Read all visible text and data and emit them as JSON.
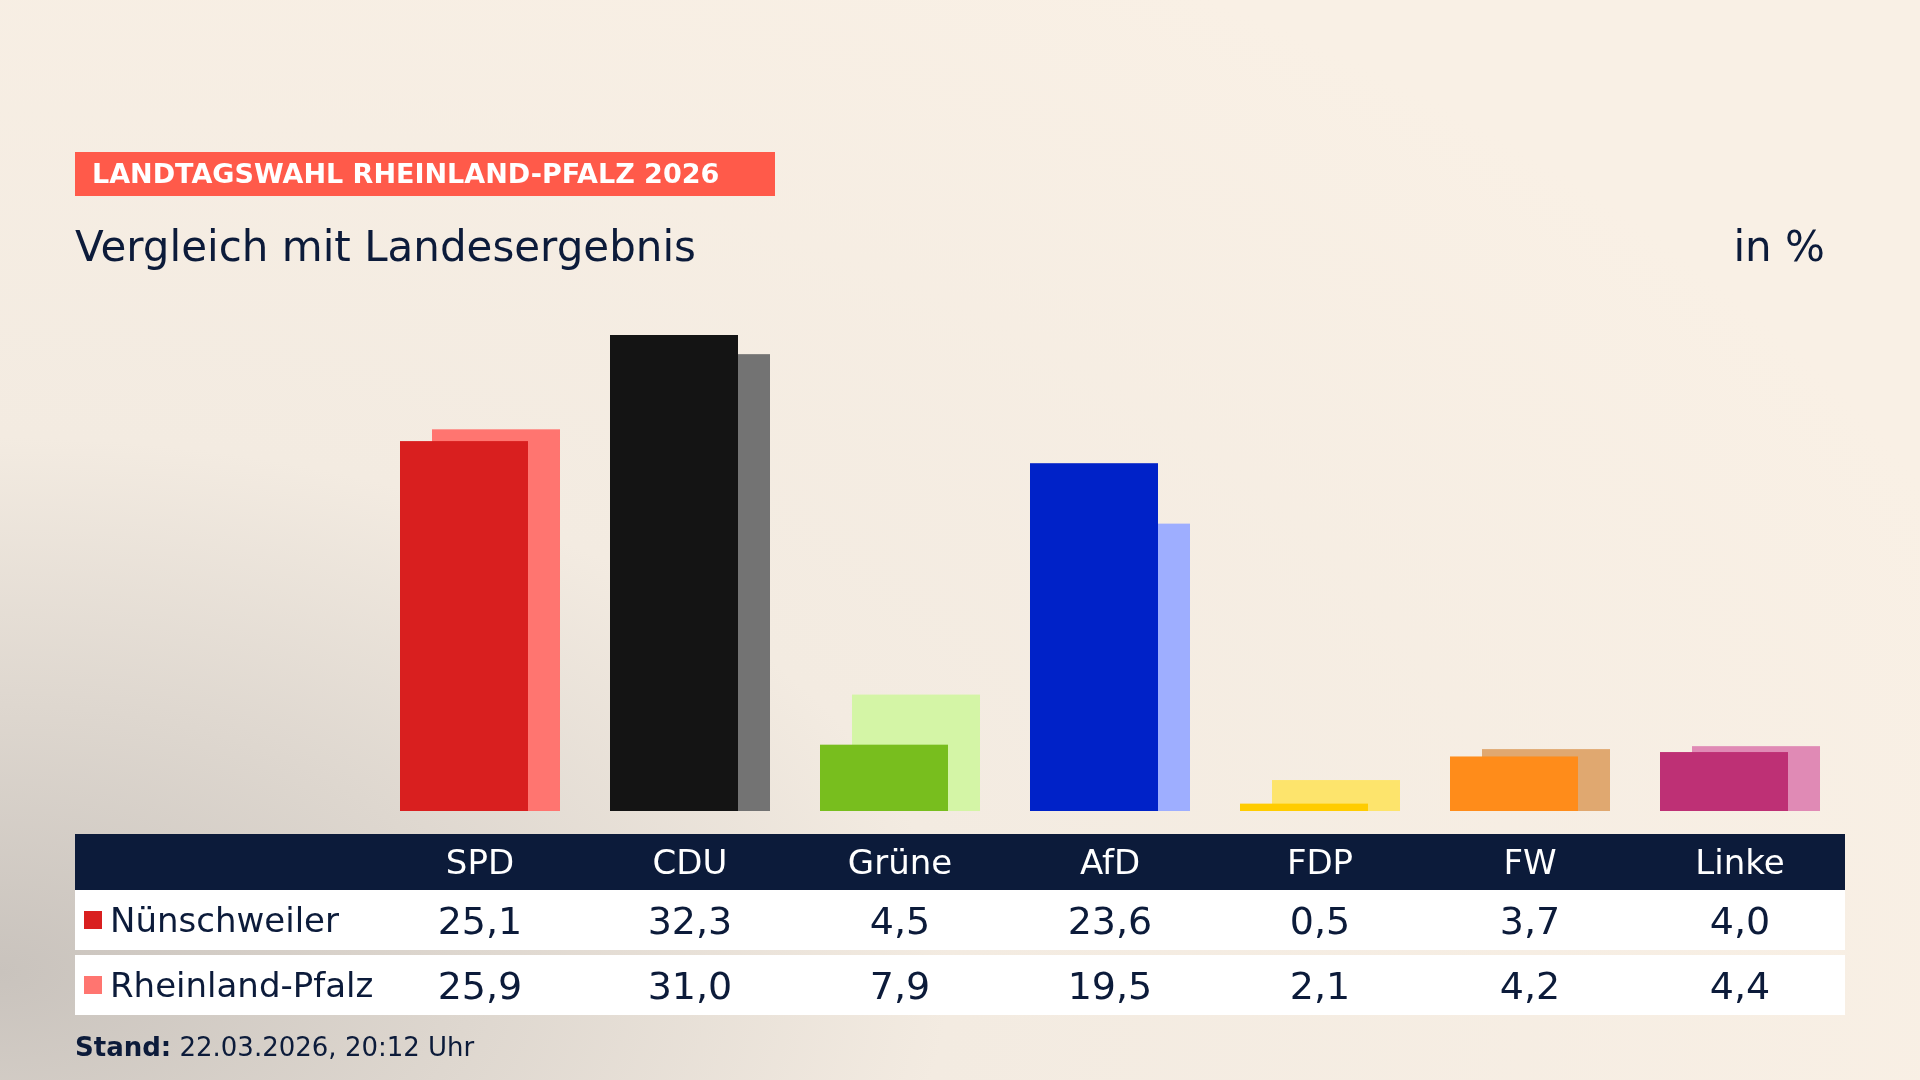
{
  "chart_data": {
    "type": "bar",
    "title": "LANDTAGSWAHL RHEINLAND-PFALZ 2026",
    "subtitle": "Vergleich mit Landesergebnis",
    "ylabel": "in %",
    "categories": [
      "SPD",
      "CDU",
      "Grüne",
      "AfD",
      "FDP",
      "FW",
      "Linke"
    ],
    "series": [
      {
        "name": "Nünschweiler",
        "colors": [
          "#d91f1f",
          "#141414",
          "#78be1e",
          "#0022c8",
          "#ffcc00",
          "#ff8c1a",
          "#be3075"
        ],
        "values": [
          25.1,
          32.3,
          4.5,
          23.6,
          0.5,
          3.7,
          4.0
        ],
        "value_labels": [
          "25,1",
          "32,3",
          "4,5",
          "23,6",
          "0,5",
          "3,7",
          "4,0"
        ]
      },
      {
        "name": "Rheinland-Pfalz",
        "colors": [
          "#ff7570",
          "#737373",
          "#d4f5a6",
          "#9eaeff",
          "#fde46c",
          "#e0a870",
          "#e08ab5"
        ],
        "values": [
          25.9,
          31.0,
          7.9,
          19.5,
          2.1,
          4.2,
          4.4
        ],
        "value_labels": [
          "25,9",
          "31,0",
          "7,9",
          "19,5",
          "2,1",
          "4,2",
          "4,4"
        ]
      }
    ],
    "legend": "bottom left",
    "annotations": [
      "Stand: 22.03.2026, 20:12 Uhr"
    ]
  }
}
